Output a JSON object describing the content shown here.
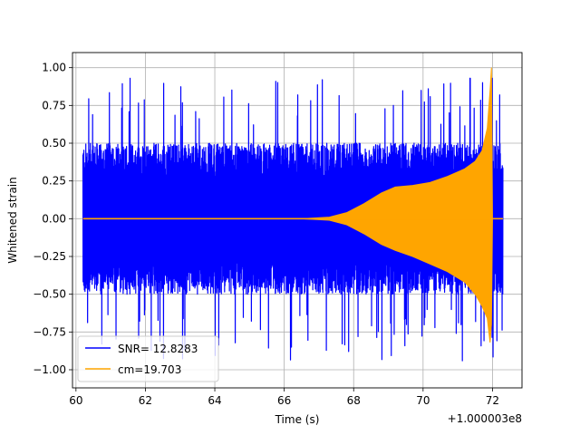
{
  "chart_data": {
    "type": "line",
    "title": "",
    "xlabel": "Time (s)",
    "ylabel": "Whitened strain",
    "offset_text": "+1.000003e8",
    "xlim": [
      59.9,
      72.85
    ],
    "ylim": [
      -1.12,
      1.1
    ],
    "xticks": [
      60,
      62,
      64,
      66,
      68,
      70,
      72
    ],
    "xtick_labels": [
      "60",
      "62",
      "64",
      "66",
      "68",
      "70",
      "72"
    ],
    "yticks": [
      -1.0,
      -0.75,
      -0.5,
      -0.25,
      0.0,
      0.25,
      0.5,
      0.75,
      1.0
    ],
    "ytick_labels": [
      "−1.00",
      "−0.75",
      "−0.50",
      "−0.25",
      "0.00",
      "0.25",
      "0.50",
      "0.75",
      "1.00"
    ],
    "grid": true,
    "legend_position": "lower-left",
    "series": [
      {
        "name": "SNR= 12.8283",
        "color": "#0000ff",
        "x_range": [
          60.2,
          72.3
        ],
        "typical_amplitude": 0.5,
        "max": 0.93,
        "min": -1.03
      },
      {
        "name": "cm=19.703",
        "color": "#ffa500",
        "x_range": [
          60.2,
          72.3
        ],
        "envelope": {
          "t": [
            60.2,
            66.5,
            67.3,
            67.8,
            68.3,
            68.8,
            69.2,
            69.7,
            70.2,
            70.7,
            71.2,
            71.5,
            71.7,
            71.85,
            71.93,
            71.97,
            72.0
          ],
          "upper": [
            0.0,
            0.0,
            0.01,
            0.04,
            0.1,
            0.17,
            0.21,
            0.22,
            0.24,
            0.28,
            0.33,
            0.38,
            0.45,
            0.6,
            0.85,
            1.0,
            0.0
          ],
          "lower": [
            0.0,
            0.0,
            -0.01,
            -0.04,
            -0.1,
            -0.17,
            -0.21,
            -0.25,
            -0.3,
            -0.35,
            -0.42,
            -0.5,
            -0.58,
            -0.66,
            -0.82,
            -0.7,
            0.0
          ]
        }
      }
    ]
  }
}
